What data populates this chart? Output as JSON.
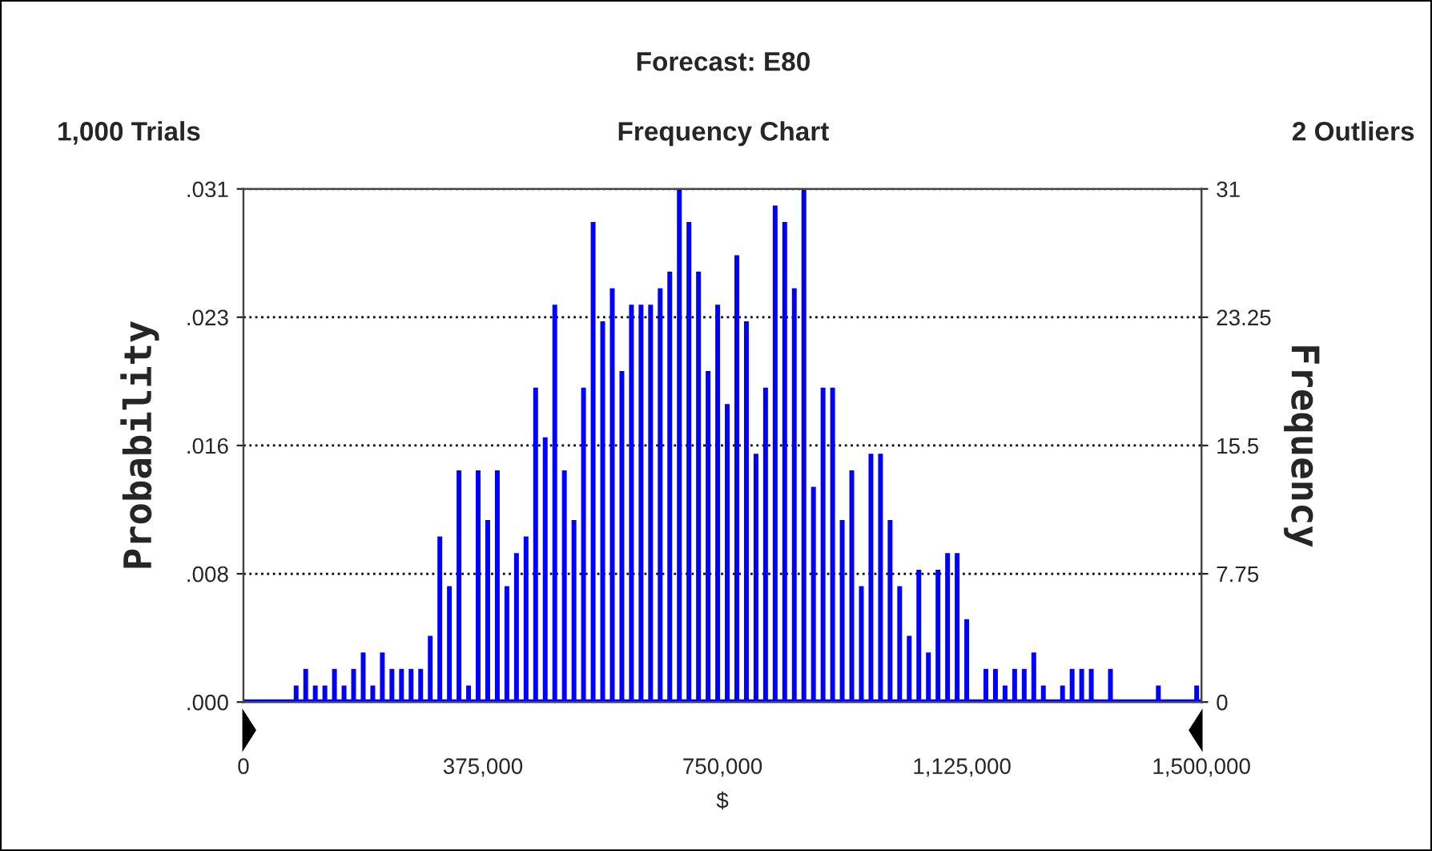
{
  "chart_data": {
    "type": "histogram",
    "title": "Forecast: E80",
    "subtitle": "Frequency Chart",
    "xlabel": "$",
    "ylabel": "Probability",
    "y2label": "Frequency",
    "annotations": [
      "1,000 Trials",
      "2 Outliers"
    ],
    "bins": [
      0,
      15000,
      30000,
      45000,
      60000,
      75000,
      90000,
      105000,
      120000,
      135000,
      150000,
      165000,
      180000,
      195000,
      210000,
      225000,
      240000,
      255000,
      270000,
      285000,
      300000,
      315000,
      330000,
      345000,
      360000,
      375000,
      390000,
      405000,
      420000,
      435000,
      450000,
      465000,
      480000,
      495000,
      510000,
      525000,
      540000,
      555000,
      570000,
      585000,
      600000,
      615000,
      630000,
      645000,
      660000,
      675000,
      690000,
      705000,
      720000,
      735000,
      750000,
      765000,
      780000,
      795000,
      810000,
      825000,
      840000,
      855000,
      870000,
      885000,
      900000,
      915000,
      930000,
      945000,
      960000,
      975000,
      990000,
      1005000,
      1020000,
      1035000,
      1050000,
      1065000,
      1080000,
      1095000,
      1110000,
      1125000,
      1140000,
      1155000,
      1170000,
      1185000,
      1200000,
      1215000,
      1230000,
      1245000,
      1260000,
      1275000,
      1290000,
      1305000,
      1320000,
      1335000,
      1350000,
      1365000,
      1380000,
      1395000,
      1410000,
      1425000,
      1440000,
      1455000,
      1470000,
      1485000,
      1500000
    ],
    "series": [
      {
        "axis": "y2",
        "color": "#0000ff",
        "values": [
          0,
          0,
          0,
          0,
          0,
          1,
          2,
          1,
          1,
          2,
          1,
          2,
          3,
          1,
          3,
          2,
          2,
          2,
          2,
          4,
          10,
          7,
          14,
          1,
          14,
          11,
          14,
          7,
          9,
          10,
          19,
          16,
          24,
          14,
          11,
          19,
          29,
          23,
          25,
          20,
          24,
          24,
          24,
          25,
          26,
          31,
          29,
          26,
          20,
          24,
          18,
          27,
          23,
          15,
          19,
          30,
          29,
          25,
          31,
          13,
          19,
          19,
          11,
          14,
          7,
          15,
          15,
          11,
          7,
          4,
          8,
          3,
          8,
          9,
          9,
          5,
          0,
          2,
          2,
          1,
          2,
          2,
          3,
          1,
          0,
          1,
          2,
          2,
          2,
          0,
          2,
          0,
          0,
          0,
          0,
          1,
          0,
          0,
          0,
          1
        ]
      }
    ],
    "xlim": [
      0,
      1500000
    ],
    "xticks": [
      0,
      {
        "value": 375000,
        "label": "375,000"
      },
      {
        "value": 750000,
        "label": "750,000"
      },
      {
        "value": 1125000,
        "label": "1,125,000"
      },
      {
        "value": 1500000,
        "label": "1,500,000"
      }
    ],
    "ylim": [
      0,
      0.031
    ],
    "yticks": [
      {
        "value": 0,
        "label": ".000"
      },
      {
        "value": 0.00775,
        "label": ".008"
      },
      {
        "value": 0.0155,
        "label": ".016"
      },
      {
        "value": 0.02325,
        "label": ".023"
      },
      {
        "value": 0.031,
        "label": ".031"
      }
    ],
    "y2lim": [
      0,
      31
    ],
    "y2ticks": [
      0,
      7.75,
      15.5,
      23.25,
      31
    ],
    "grid": "y",
    "line_style": "dotted"
  }
}
